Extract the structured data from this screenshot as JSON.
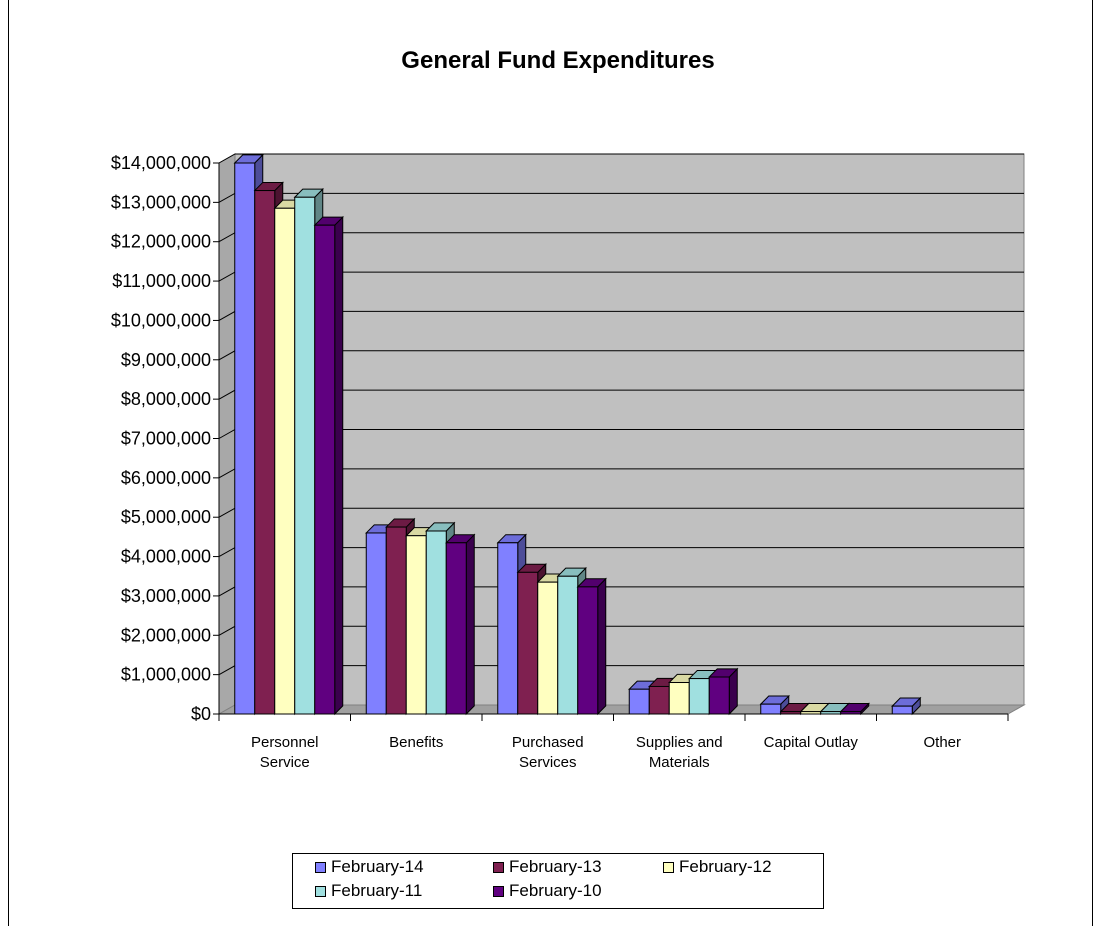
{
  "chart_data": {
    "type": "bar",
    "title": "General Fund Expenditures",
    "xlabel": "",
    "ylabel": "",
    "ylim": [
      0,
      14000000
    ],
    "y_ticks": [
      "$0",
      "$1,000,000",
      "$2,000,000",
      "$3,000,000",
      "$4,000,000",
      "$5,000,000",
      "$6,000,000",
      "$7,000,000",
      "$8,000,000",
      "$9,000,000",
      "$10,000,000",
      "$11,000,000",
      "$12,000,000",
      "$13,000,000",
      "$14,000,000"
    ],
    "categories": [
      [
        "Personnel",
        "Service"
      ],
      [
        "Benefits"
      ],
      [
        "Purchased",
        "Services"
      ],
      [
        "Supplies and",
        "Materials"
      ],
      [
        "Capital Outlay"
      ],
      [
        "Other"
      ]
    ],
    "series": [
      {
        "name": "February-14",
        "color": "#8080ff",
        "values": [
          14000000,
          4600000,
          4350000,
          630000,
          250000,
          200000
        ]
      },
      {
        "name": "February-13",
        "color": "#7f2050",
        "values": [
          13300000,
          4750000,
          3600000,
          700000,
          60000,
          0
        ]
      },
      {
        "name": "February-12",
        "color": "#ffffc0",
        "values": [
          12850000,
          4530000,
          3350000,
          800000,
          60000,
          0
        ]
      },
      {
        "name": "February-11",
        "color": "#a0e0e0",
        "values": [
          13130000,
          4650000,
          3500000,
          900000,
          60000,
          0
        ]
      },
      {
        "name": "February-10",
        "color": "#600080",
        "values": [
          12420000,
          4350000,
          3230000,
          940000,
          60000,
          0
        ]
      }
    ],
    "plot_background": "#c0c0c0",
    "grid": true,
    "legend_position": "bottom"
  }
}
